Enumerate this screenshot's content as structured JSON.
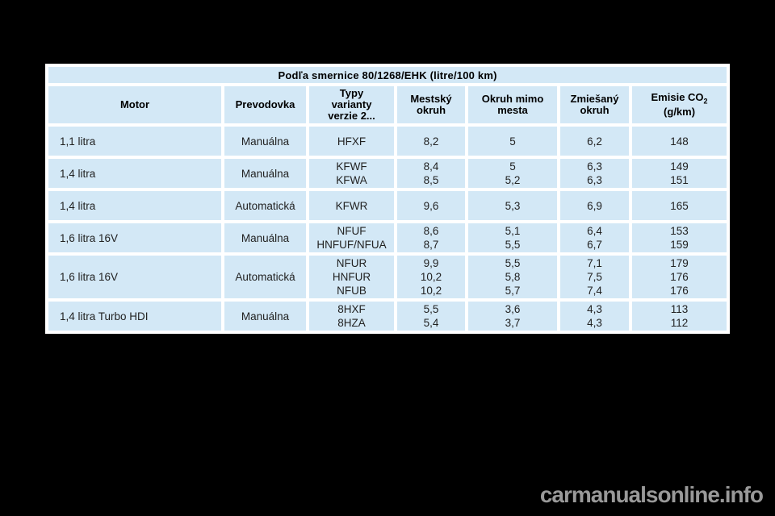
{
  "colors": {
    "page_background": "#000000",
    "cell_background": "#d3e8f6",
    "table_gap": "#ffffff",
    "header_text": "#000000",
    "data_text": "#222222",
    "watermark_text": "#999999"
  },
  "table": {
    "title": "Podľa smernice 80/1268/EHK (litre/100 km)",
    "columns": {
      "motor": {
        "label": "Motor"
      },
      "prevodovka": {
        "label": "Prevodovka"
      },
      "typy": {
        "lines": [
          "Typy",
          "varianty",
          "verzie 2..."
        ]
      },
      "mestsky": {
        "lines": [
          "Mestský",
          "okruh"
        ]
      },
      "mimo": {
        "lines": [
          "Okruh mimo",
          "mesta"
        ]
      },
      "zmiesany": {
        "lines": [
          "Zmiešaný",
          "okruh"
        ]
      },
      "emisie": {
        "prefix": "Emisie CO",
        "subscript": "2",
        "unit": "(g/km)"
      }
    },
    "rows": [
      {
        "motor": "1,1 litra",
        "prevodovka": "Manuálna",
        "typy": [
          "HFXF"
        ],
        "mestsky": [
          "8,2"
        ],
        "mimo": [
          "5"
        ],
        "zmiesany": [
          "6,2"
        ],
        "emisie": [
          "148"
        ]
      },
      {
        "motor": "1,4 litra",
        "prevodovka": "Manuálna",
        "typy": [
          "KFWF",
          "KFWA"
        ],
        "mestsky": [
          "8,4",
          "8,5"
        ],
        "mimo": [
          "5",
          "5,2"
        ],
        "zmiesany": [
          "6,3",
          "6,3"
        ],
        "emisie": [
          "149",
          "151"
        ]
      },
      {
        "motor": "1,4 litra",
        "prevodovka": "Automatická",
        "typy": [
          "KFWR"
        ],
        "mestsky": [
          "9,6"
        ],
        "mimo": [
          "5,3"
        ],
        "zmiesany": [
          "6,9"
        ],
        "emisie": [
          "165"
        ]
      },
      {
        "motor": "1,6 litra 16V",
        "prevodovka": "Manuálna",
        "typy": [
          "NFUF",
          "HNFUF/NFUA"
        ],
        "mestsky": [
          "8,6",
          "8,7"
        ],
        "mimo": [
          "5,1",
          "5,5"
        ],
        "zmiesany": [
          "6,4",
          "6,7"
        ],
        "emisie": [
          "153",
          "159"
        ]
      },
      {
        "motor": "1,6 litra 16V",
        "prevodovka": "Automatická",
        "typy": [
          "NFUR",
          "HNFUR",
          "NFUB"
        ],
        "mestsky": [
          "9,9",
          "10,2",
          "10,2"
        ],
        "mimo": [
          "5,5",
          "5,8",
          "5,7"
        ],
        "zmiesany": [
          "7,1",
          "7,5",
          "7,4"
        ],
        "emisie": [
          "179",
          "176",
          "176"
        ]
      },
      {
        "motor": "1,4 litra Turbo HDI",
        "prevodovka": "Manuálna",
        "typy": [
          "8HXF",
          "8HZA"
        ],
        "mestsky": [
          "5,5",
          "5,4"
        ],
        "mimo": [
          "3,6",
          "3,7"
        ],
        "zmiesany": [
          "4,3",
          "4,3"
        ],
        "emisie": [
          "113",
          "112"
        ]
      }
    ]
  },
  "watermark": {
    "text": "carmanualsonline.info"
  }
}
